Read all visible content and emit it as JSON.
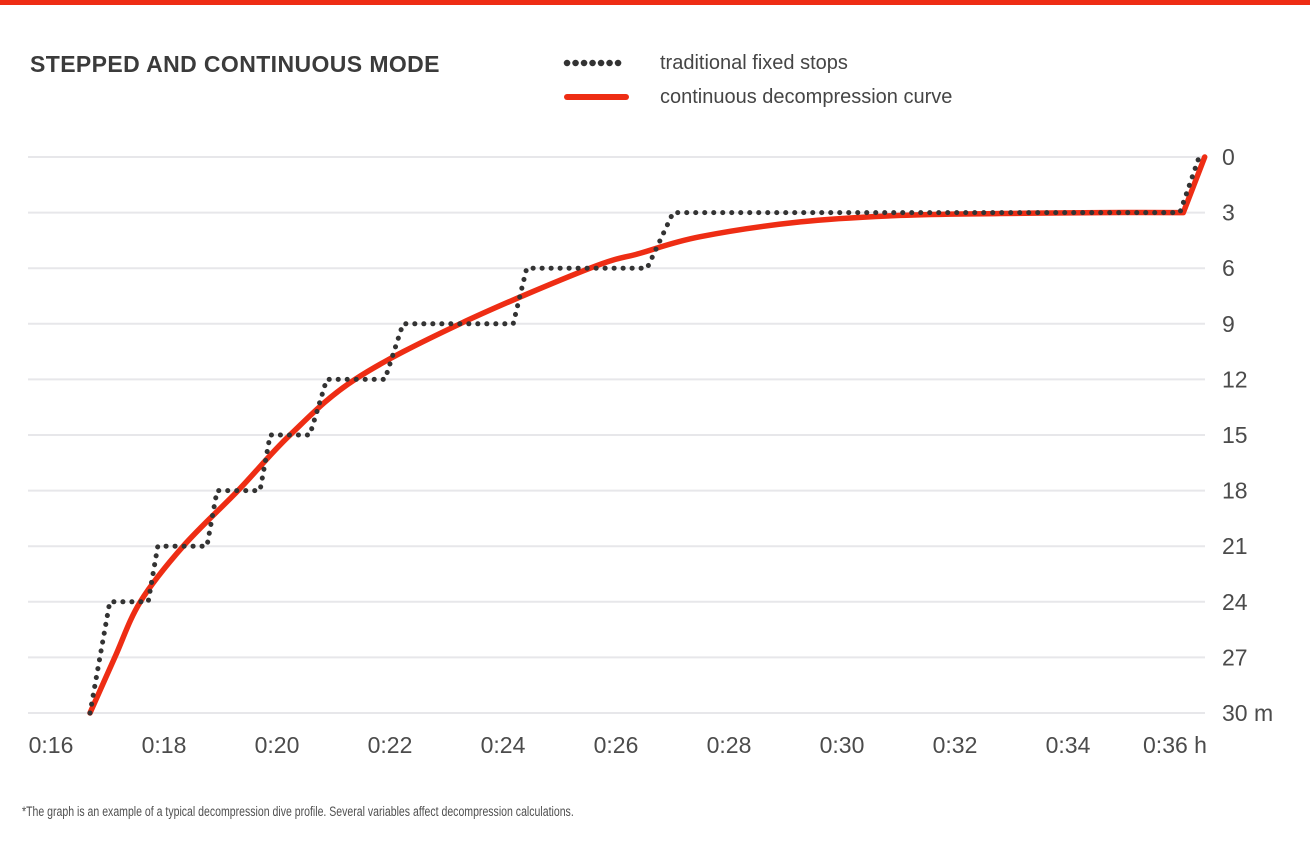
{
  "page": {
    "background": "#ffffff",
    "accent_color": "#ee2d14"
  },
  "title": "STEPPED AND CONTINUOUS MODE",
  "legend": {
    "items": [
      {
        "label": "traditional fixed stops",
        "swatch": "dotted-black",
        "color": "#333333"
      },
      {
        "label": "continuous decompression curve",
        "swatch": "solid-red",
        "color": "#ee2d14"
      }
    ]
  },
  "footnote": "*The graph is an example of a typical decompression dive profile. Several variables affect decompression calculations.",
  "chart_data": {
    "type": "line",
    "title": "STEPPED AND CONTINUOUS MODE",
    "x_axis": {
      "unit": "h",
      "tick_labels": [
        "0:16",
        "0:18",
        "0:20",
        "0:22",
        "0:24",
        "0:26",
        "0:28",
        "0:30",
        "0:32",
        "0:34",
        "0:36"
      ],
      "tick_times_min": [
        16,
        18,
        20,
        22,
        24,
        26,
        28,
        30,
        32,
        34,
        36
      ],
      "last_tick_suffix": " h",
      "range_min": [
        16,
        36.5
      ]
    },
    "y_axis": {
      "unit": "m",
      "ticks_m": [
        0,
        3,
        6,
        9,
        12,
        15,
        18,
        21,
        24,
        27,
        30
      ],
      "last_tick_suffix": " m",
      "direction": "depth increases downward",
      "range_m": [
        0,
        30
      ]
    },
    "grid": {
      "horizontal": true,
      "vertical": false,
      "color": "#e7e7ea"
    },
    "legend_position": "top-center",
    "series": [
      {
        "name": "traditional fixed stops",
        "style": "dotted",
        "color": "#333333",
        "interpolation": "linear",
        "points_time_min_depth_m": [
          [
            16.69,
            30
          ],
          [
            17.04,
            24
          ],
          [
            17.72,
            24
          ],
          [
            17.89,
            21
          ],
          [
            18.76,
            21
          ],
          [
            18.94,
            18
          ],
          [
            19.7,
            18
          ],
          [
            19.88,
            15
          ],
          [
            20.58,
            15
          ],
          [
            20.88,
            12
          ],
          [
            21.91,
            12
          ],
          [
            22.23,
            9
          ],
          [
            24.18,
            9
          ],
          [
            24.42,
            6
          ],
          [
            26.55,
            6
          ],
          [
            27.01,
            3
          ],
          [
            35.98,
            3
          ],
          [
            36.32,
            0
          ]
        ]
      },
      {
        "name": "continuous decompression curve",
        "style": "solid",
        "color": "#ee2d14",
        "interpolation": "smooth",
        "end_segment": "linear",
        "points_time_min_depth_m": [
          [
            16.69,
            30
          ],
          [
            17.13,
            27
          ],
          [
            17.58,
            24
          ],
          [
            18.34,
            21
          ],
          [
            19.31,
            18
          ],
          [
            20.23,
            15
          ],
          [
            21.38,
            12
          ],
          [
            23.24,
            9
          ],
          [
            25.54,
            6
          ],
          [
            26.42,
            5.2
          ],
          [
            27.49,
            4.3
          ],
          [
            29.26,
            3.5
          ],
          [
            31.03,
            3.15
          ],
          [
            32.8,
            3.05
          ],
          [
            34.57,
            3.0
          ],
          [
            36.04,
            3.0
          ],
          [
            36.42,
            0
          ]
        ]
      }
    ]
  }
}
